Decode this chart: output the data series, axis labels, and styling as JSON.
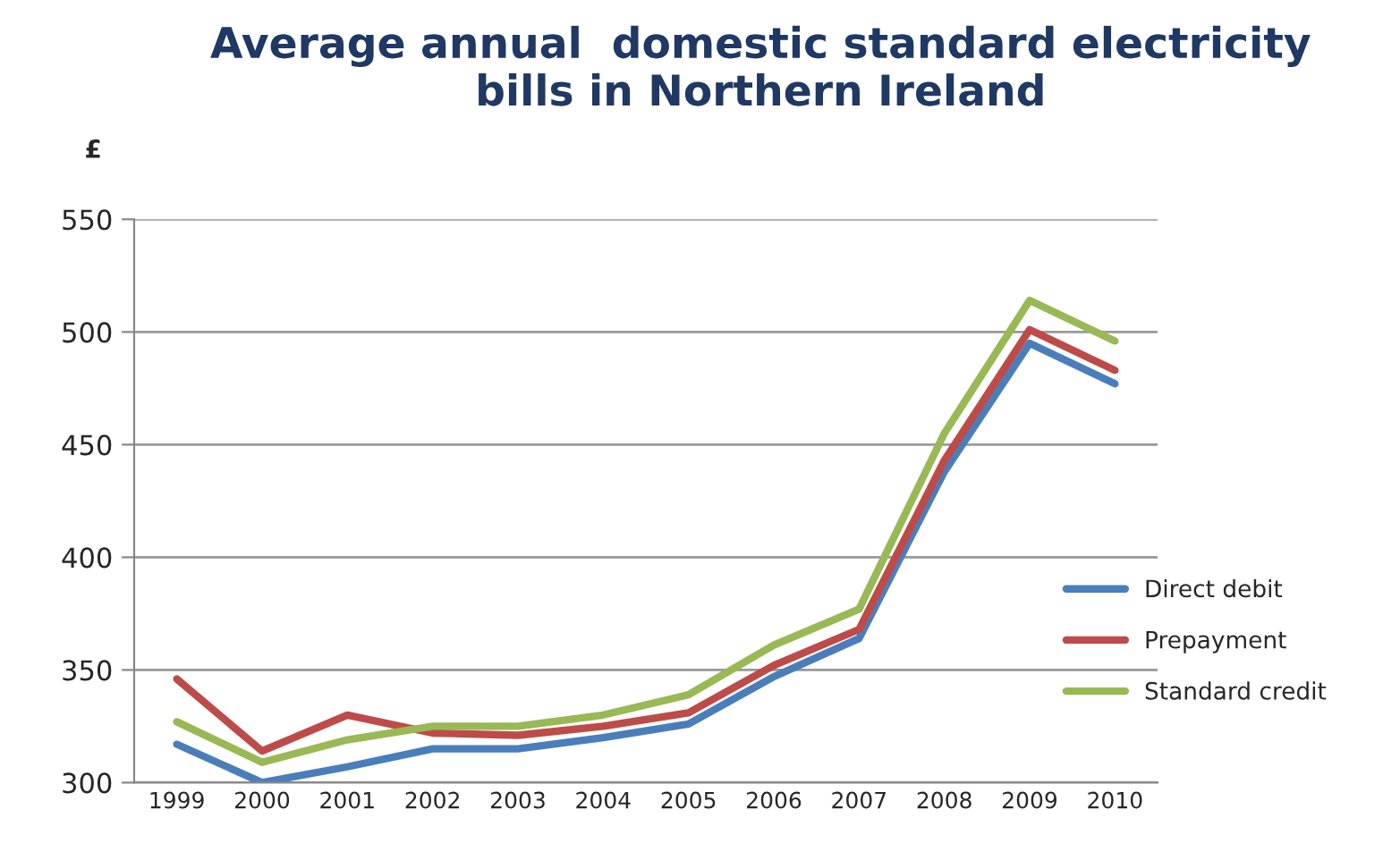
{
  "chart_data": {
    "type": "line",
    "title": "Average annual  domestic standard electricity\nbills in Northern Ireland",
    "ylabel": "£",
    "categories": [
      "1999",
      "2000",
      "2001",
      "2002",
      "2003",
      "2004",
      "2005",
      "2006",
      "2007",
      "2008",
      "2009",
      "2010"
    ],
    "series": [
      {
        "name": "Direct debit",
        "color": "#4a7ebb",
        "values": [
          317,
          300,
          307,
          315,
          315,
          320,
          326,
          347,
          364,
          438,
          495,
          477
        ]
      },
      {
        "name": "Prepayment",
        "color": "#be4b48",
        "values": [
          346,
          314,
          330,
          322,
          321,
          325,
          331,
          352,
          368,
          443,
          501,
          483
        ]
      },
      {
        "name": "Standard credit",
        "color": "#98b954",
        "values": [
          327,
          309,
          319,
          325,
          325,
          330,
          339,
          361,
          377,
          455,
          514,
          496
        ]
      }
    ],
    "ylim": [
      300,
      550
    ],
    "yticks": [
      300,
      350,
      400,
      450,
      500,
      550
    ],
    "grid": "y",
    "legend": "right",
    "marker": "none",
    "line_style": "solid"
  }
}
